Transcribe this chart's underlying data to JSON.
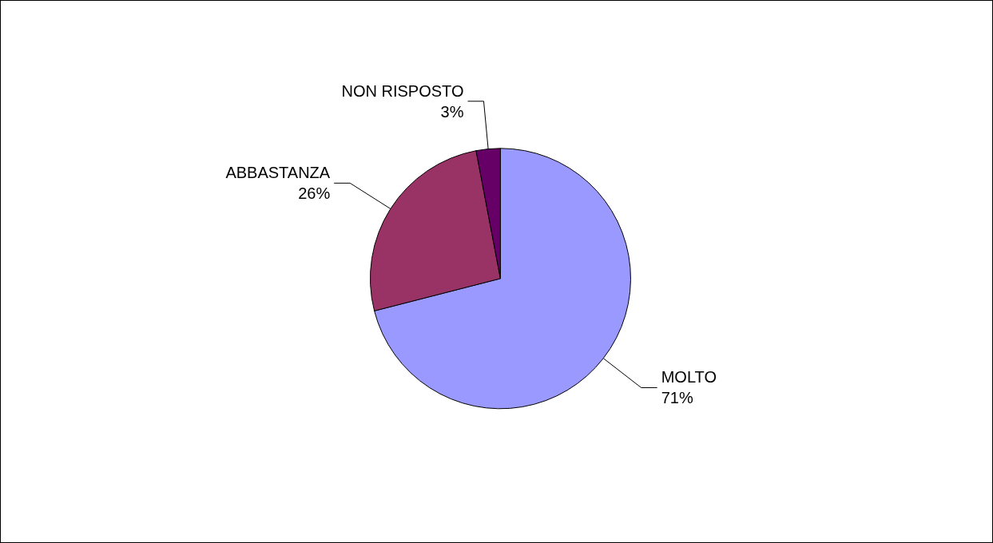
{
  "chart_data": {
    "type": "pie",
    "categories": [
      "MOLTO",
      "ABBASTANZA",
      "NON RISPOSTO"
    ],
    "values": [
      71,
      26,
      3
    ],
    "colors": [
      "#9999ff",
      "#993366",
      "#660066"
    ],
    "value_labels": [
      "71%",
      "26%",
      "3%"
    ],
    "legend": false
  }
}
